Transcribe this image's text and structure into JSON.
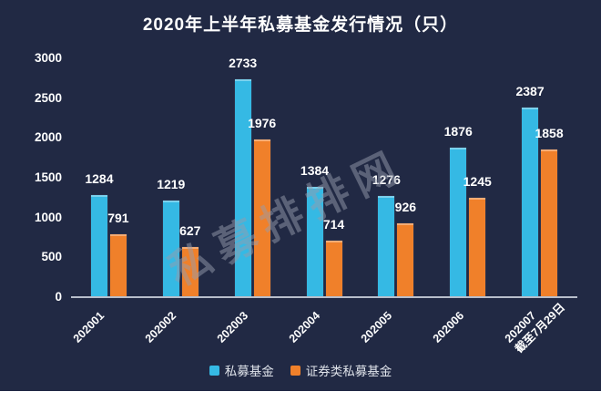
{
  "title": "2020年上半年私募基金发行情况（只）",
  "watermark": "私募排排网",
  "colors": {
    "background": "#212944",
    "page_below": "#ffffff",
    "title_text": "#ffffff",
    "tick_text": "#ffffff",
    "value_text": "#ffffff",
    "axis_line": "#b8becb",
    "legend_text": "#dfe3ea",
    "watermark": "rgba(150,156,172,0.5)",
    "series_private_fund": "#35b9e4",
    "series_securities_private_fund": "#f0802a"
  },
  "chart_data": {
    "type": "bar",
    "title": "2020年上半年私募基金发行情况（只）",
    "categories": [
      "202001",
      "202002",
      "202003",
      "202004",
      "202005",
      "202006",
      "202007\n截至7月29日"
    ],
    "series": [
      {
        "key": "private-fund",
        "name": "私募基金",
        "color": "#35b9e4",
        "values": [
          1284,
          1219,
          2733,
          1384,
          1276,
          1876,
          2387
        ]
      },
      {
        "key": "securities-private-fund",
        "name": "证券类私募基金",
        "color": "#f0802a",
        "values": [
          791,
          627,
          1976,
          714,
          926,
          1245,
          1858
        ]
      }
    ],
    "ylim": [
      0,
      3000
    ],
    "yticks": [
      0,
      500,
      1000,
      1500,
      2000,
      2500,
      3000
    ],
    "xlabel": "",
    "ylabel": "",
    "grid": false,
    "legend_position": "bottom",
    "value_labels": true,
    "x_label_rotation_deg": 45
  }
}
